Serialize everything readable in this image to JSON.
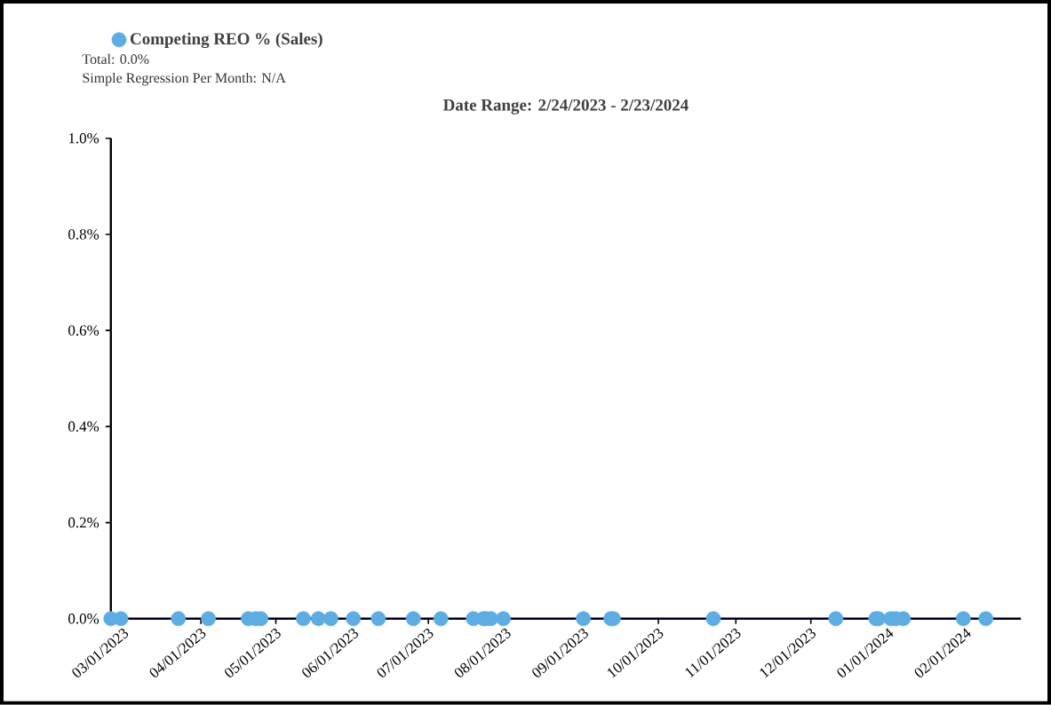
{
  "chart_data": {
    "type": "scatter",
    "title": "Date Range: 2/24/2023 - 2/23/2024",
    "annotations": [
      "Total: 0.0%",
      "Simple Regression Per Month: N/A"
    ],
    "x": [
      "2023-02-24",
      "2023-02-28",
      "2023-03-23",
      "2023-04-04",
      "2023-04-20",
      "2023-04-23",
      "2023-04-25",
      "2023-05-12",
      "2023-05-18",
      "2023-05-23",
      "2023-06-01",
      "2023-06-11",
      "2023-06-25",
      "2023-07-06",
      "2023-07-19",
      "2023-07-23",
      "2023-07-24",
      "2023-07-26",
      "2023-07-31",
      "2023-09-01",
      "2023-09-12",
      "2023-09-13",
      "2023-10-23",
      "2023-12-11",
      "2023-12-27",
      "2023-12-28",
      "2024-01-02",
      "2024-01-04",
      "2024-01-07",
      "2024-01-31",
      "2024-02-09"
    ],
    "series": [
      {
        "name": "Competing REO % (Sales)",
        "color": "#5dade2",
        "values": [
          0,
          0,
          0,
          0,
          0,
          0,
          0,
          0,
          0,
          0,
          0,
          0,
          0,
          0,
          0,
          0,
          0,
          0,
          0,
          0,
          0,
          0,
          0,
          0,
          0,
          0,
          0,
          0,
          0,
          0,
          0
        ]
      }
    ],
    "xlim": [
      "2023-02-24",
      "2024-02-23"
    ],
    "xticks": [
      {
        "value": "2023-03-01",
        "label": "03/01/2023"
      },
      {
        "value": "2023-04-01",
        "label": "04/01/2023"
      },
      {
        "value": "2023-05-01",
        "label": "05/01/2023"
      },
      {
        "value": "2023-06-01",
        "label": "06/01/2023"
      },
      {
        "value": "2023-07-01",
        "label": "07/01/2023"
      },
      {
        "value": "2023-08-01",
        "label": "08/01/2023"
      },
      {
        "value": "2023-09-01",
        "label": "09/01/2023"
      },
      {
        "value": "2023-10-01",
        "label": "10/01/2023"
      },
      {
        "value": "2023-11-01",
        "label": "11/01/2023"
      },
      {
        "value": "2023-12-01",
        "label": "12/01/2023"
      },
      {
        "value": "2024-01-01",
        "label": "01/01/2024"
      },
      {
        "value": "2024-02-01",
        "label": "02/01/2024"
      }
    ],
    "ylim": [
      0,
      1
    ],
    "yticks": [
      {
        "value": 0,
        "label": "0.0%"
      },
      {
        "value": 0.2,
        "label": "0.2%"
      },
      {
        "value": 0.4,
        "label": "0.4%"
      },
      {
        "value": 0.6,
        "label": "0.6%"
      },
      {
        "value": 0.8,
        "label": "0.8%"
      },
      {
        "value": 1,
        "label": "1.0%"
      }
    ],
    "legend": "top left",
    "marker": "circle",
    "grid": false
  }
}
